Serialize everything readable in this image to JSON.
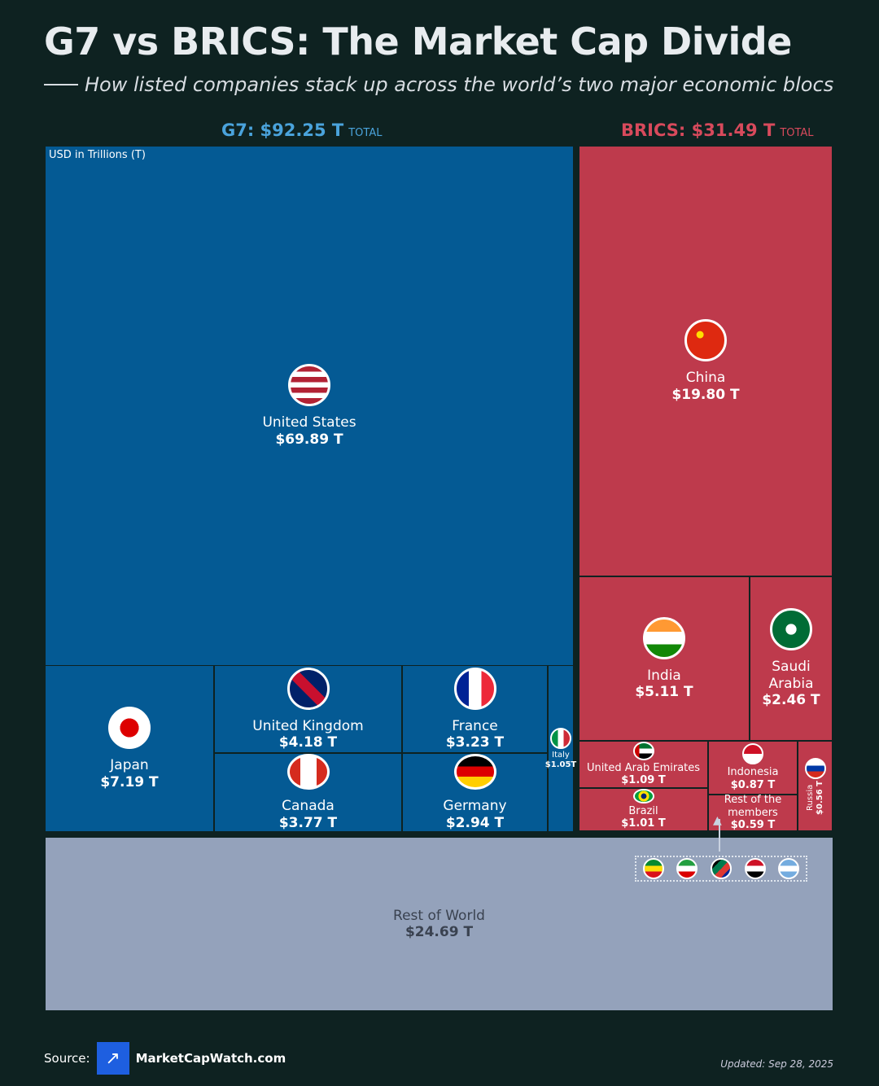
{
  "header": {
    "title": "G7 vs BRICS: The Market Cap Divide",
    "subtitle": "How listed companies stack up across the world’s two major economic blocs"
  },
  "chart_data": {
    "type": "treemap",
    "unit_label": "USD in Trillions (T)",
    "groups": [
      {
        "name": "G7",
        "total_label": "G7: $92.25 T",
        "total_suffix": "TOTAL",
        "total": 92.25,
        "color": "#045a94"
      },
      {
        "name": "BRICS",
        "total_label": "BRICS: $31.49 T",
        "total_suffix": "TOTAL",
        "total": 31.49,
        "color": "#be3a4c"
      },
      {
        "name": "Rest of World",
        "color": "#94a2bb"
      }
    ],
    "cells": [
      {
        "name": "United States",
        "label": "$69.89 T",
        "value": 69.89,
        "group": "G7"
      },
      {
        "name": "Japan",
        "label": "$7.19 T",
        "value": 7.19,
        "group": "G7"
      },
      {
        "name": "United Kingdom",
        "label": "$4.18 T",
        "value": 4.18,
        "group": "G7"
      },
      {
        "name": "Canada",
        "label": "$3.77 T",
        "value": 3.77,
        "group": "G7"
      },
      {
        "name": "France",
        "label": "$3.23 T",
        "value": 3.23,
        "group": "G7"
      },
      {
        "name": "Germany",
        "label": "$2.94 T",
        "value": 2.94,
        "group": "G7"
      },
      {
        "name": "Italy",
        "label": "$1.05T",
        "value": 1.05,
        "group": "G7"
      },
      {
        "name": "China",
        "label": "$19.80 T",
        "value": 19.8,
        "group": "BRICS"
      },
      {
        "name": "India",
        "label": "$5.11 T",
        "value": 5.11,
        "group": "BRICS"
      },
      {
        "name": "Saudi Arabia",
        "label": "$2.46 T",
        "value": 2.46,
        "group": "BRICS"
      },
      {
        "name": "United Arab Emirates",
        "label": "$1.09 T",
        "value": 1.09,
        "group": "BRICS"
      },
      {
        "name": "Brazil",
        "label": "$1.01 T",
        "value": 1.01,
        "group": "BRICS"
      },
      {
        "name": "Indonesia",
        "label": "$0.87 T",
        "value": 0.87,
        "group": "BRICS"
      },
      {
        "name": "Rest of the members",
        "label": "$0.59 T",
        "value": 0.59,
        "group": "BRICS"
      },
      {
        "name": "Russia",
        "label": "$0.56 T",
        "value": 0.56,
        "group": "BRICS"
      },
      {
        "name": "Rest of World",
        "label": "$24.69 T",
        "value": 24.69,
        "group": "Rest of World"
      }
    ],
    "rest_of_members_flags": [
      "ethiopia-flag",
      "iran-flag",
      "south-africa-flag",
      "egypt-flag",
      "argentina-flag"
    ]
  },
  "footer": {
    "source_label": "Source:",
    "source_name": "MarketCapWatch.com",
    "updated": "Updated: Sep 28, 2025"
  }
}
